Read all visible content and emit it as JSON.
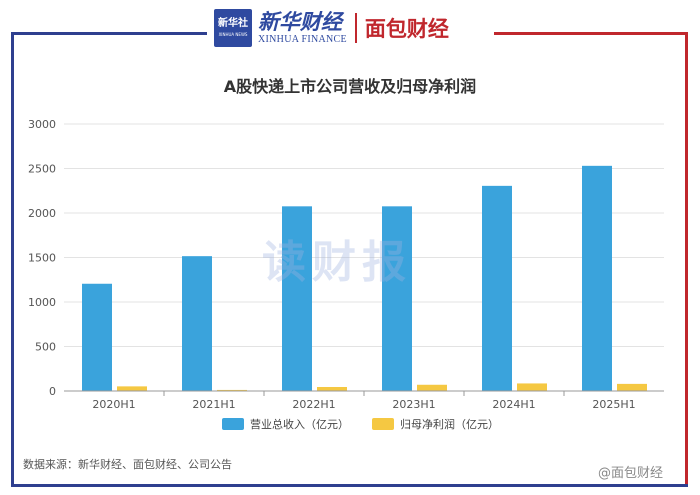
{
  "header": {
    "logo_main": "新华社",
    "logo_sub": "XINHUA NEWS",
    "brand_cn": "新华财经",
    "brand_en": "XINHUA FINANCE",
    "brand2": "面包财经"
  },
  "source_note": "数据来源：新华财经、面包财经、公司公告",
  "watermark": "读财报",
  "weibo_mark": "@面包财经",
  "colors": {
    "revenue": "#3aa3dc",
    "profit": "#f5c842",
    "frame_blue": "#2e3f8f",
    "frame_red": "#c0272d"
  },
  "chart_data": {
    "type": "bar",
    "title": "A股快递上市公司营收及归母净利润",
    "categories": [
      "2020H1",
      "2021H1",
      "2022H1",
      "2023H1",
      "2024H1",
      "2025H1"
    ],
    "series": [
      {
        "name": "营业总收入（亿元）",
        "values": [
          1205,
          1515,
          2075,
          2075,
          2305,
          2530
        ]
      },
      {
        "name": "归母净利润（亿元）",
        "values": [
          52,
          12,
          45,
          70,
          85,
          80
        ]
      }
    ],
    "yticks": [
      0,
      500,
      1000,
      1500,
      2000,
      2500,
      3000
    ],
    "ylim": [
      0,
      3000
    ],
    "xlabel": "",
    "ylabel": "",
    "grid": true,
    "legend_position": "bottom-center"
  }
}
